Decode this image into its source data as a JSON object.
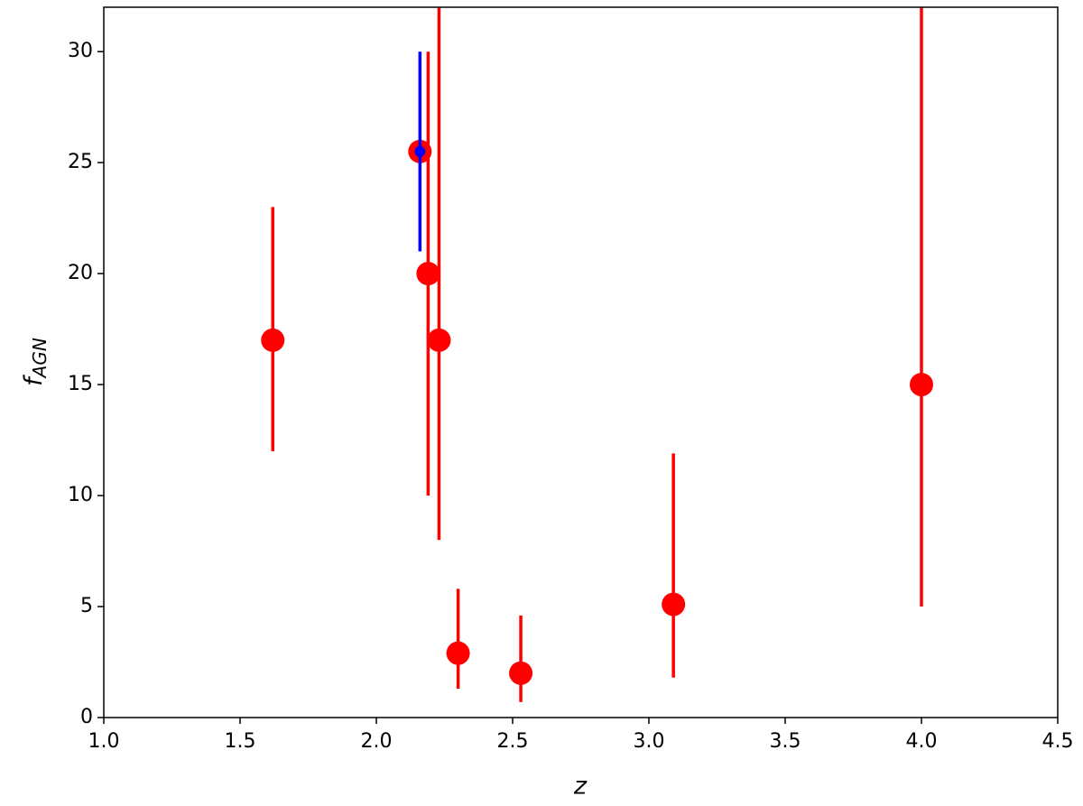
{
  "chart_data": {
    "type": "scatter",
    "xlabel": "z",
    "ylabel": {
      "main": "f",
      "sub": "AGN"
    },
    "xlim": [
      1.0,
      4.5
    ],
    "ylim": [
      0,
      32
    ],
    "xticks": [
      {
        "value": 1,
        "label": "1.0"
      },
      1.5,
      {
        "value": 2,
        "label": "2.0"
      },
      2.5,
      {
        "value": 3,
        "label": "3.0"
      },
      3.5,
      {
        "value": 4,
        "label": "4.0"
      },
      4.5
    ],
    "yticks": [
      0,
      5,
      10,
      15,
      20,
      25,
      30
    ],
    "series": [
      {
        "color": "#ff0000",
        "x": [
          1.62,
          2.16,
          2.19,
          2.23,
          2.3,
          2.53,
          3.09,
          4.0
        ],
        "values": [
          17,
          25.5,
          20,
          17,
          2.9,
          2.0,
          5.1,
          15
        ],
        "lower": [
          12,
          null,
          10,
          8,
          1.3,
          0.7,
          1.8,
          5
        ],
        "upper": [
          23,
          null,
          30,
          32,
          5.8,
          4.6,
          11.9,
          32
        ]
      },
      {
        "color": "#0000ff",
        "x": [
          2.16
        ],
        "values": [
          25.5
        ],
        "lower": [
          21
        ],
        "upper": [
          30
        ]
      }
    ]
  }
}
